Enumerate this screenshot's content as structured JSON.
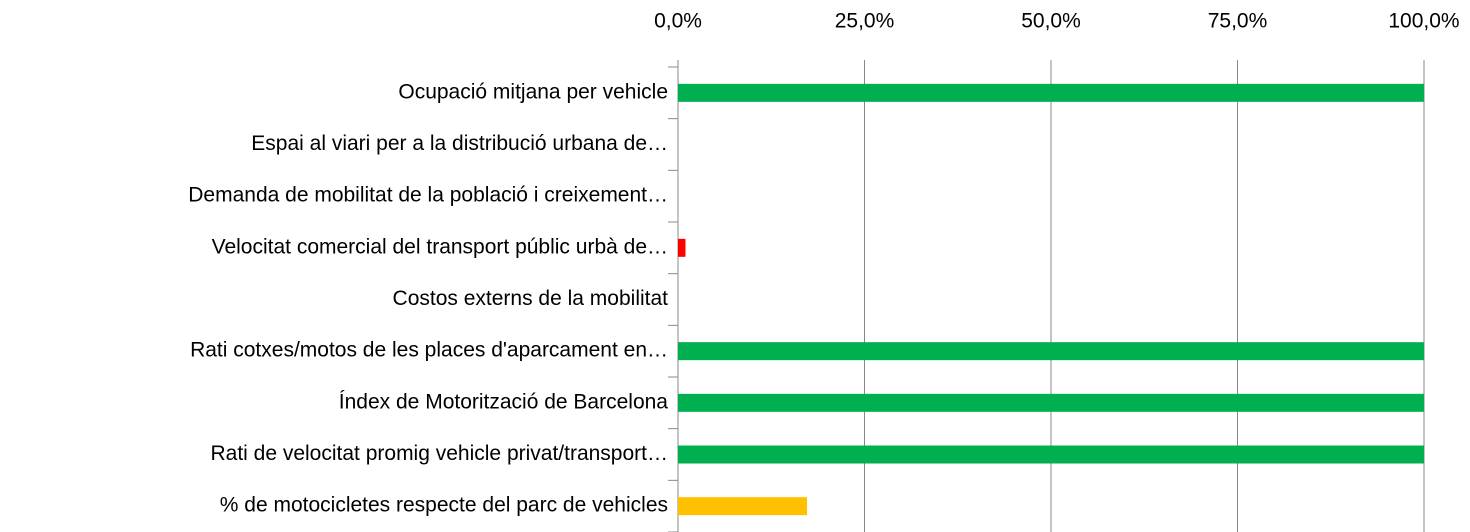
{
  "chart_data": {
    "type": "bar",
    "orientation": "horizontal",
    "categories": [
      "Ocupació mitjana per vehicle",
      "Espai al viari per a la distribució urbana de…",
      "Demanda de mobilitat de la població i creixement…",
      "Velocitat comercial del transport públic urbà de…",
      "Costos externs de la mobilitat",
      "Rati cotxes/motos de les places d'aparcament en…",
      "Índex de Motorització de Barcelona",
      "Rati de velocitat promig vehicle privat/transport…",
      "% de motocicletes respecte del parc de vehicles"
    ],
    "values": [
      100,
      0,
      0,
      1,
      0,
      100,
      100,
      100,
      17.3
    ],
    "colors": [
      "#00b050",
      null,
      null,
      "#ff0000",
      null,
      "#00b050",
      "#00b050",
      "#00b050",
      "#ffc000"
    ],
    "xlim": [
      0,
      100
    ],
    "xticks": [
      {
        "value": 0,
        "label": "0,0%"
      },
      {
        "value": 25,
        "label": "25,0%"
      },
      {
        "value": 50,
        "label": "50,0%"
      },
      {
        "value": 75,
        "label": "75,0%"
      },
      {
        "value": 100,
        "label": "100,0%"
      }
    ],
    "grid": true
  }
}
